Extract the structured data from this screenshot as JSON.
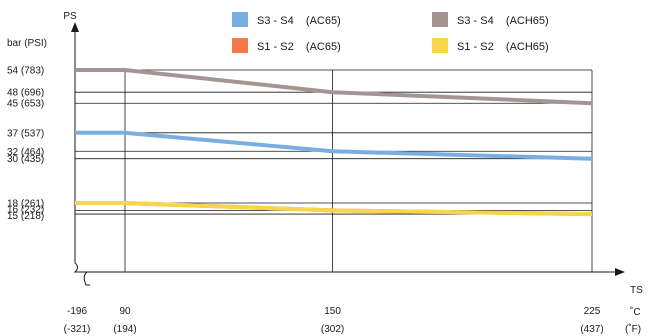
{
  "chart_data": {
    "type": "line",
    "ylabel": "PS",
    "yunit": "bar (PSI)",
    "xlabel": "TS",
    "xunit_c": "˚C",
    "xunit_f": "(˚F)",
    "x_ticks": [
      {
        "c": "-196",
        "f": "(-321)"
      },
      {
        "c": "90",
        "f": "(194)"
      },
      {
        "c": "150",
        "f": "(302)"
      },
      {
        "c": "225",
        "f": "(437)"
      }
    ],
    "y_ticks": [
      {
        "v": 15,
        "label": "15  (218)"
      },
      {
        "v": 16,
        "label": "16  (232)"
      },
      {
        "v": 18,
        "label": "18  (261)"
      },
      {
        "v": 30,
        "label": "30  (435)"
      },
      {
        "v": 32,
        "label": "32  (464)"
      },
      {
        "v": 37,
        "label": "37  (537)"
      },
      {
        "v": 45,
        "label": "45  (653)"
      },
      {
        "v": 48,
        "label": "48  (696)"
      },
      {
        "v": 54,
        "label": "54  (783)"
      }
    ],
    "x_axis_break": true,
    "grid": true,
    "legend_position": "top",
    "series": [
      {
        "name": "S3 - S4    (AC65)",
        "color": "#7aaee0",
        "x": [
          -196,
          90,
          150,
          225
        ],
        "y": [
          37,
          37,
          32,
          30
        ]
      },
      {
        "name": "S3 - S4    (ACH65)",
        "color": "#a39690",
        "x": [
          -196,
          90,
          150,
          225
        ],
        "y": [
          54,
          54,
          48,
          45
        ]
      },
      {
        "name": "S1 - S2    (AC65)",
        "color": "#f47a45",
        "x": [
          -196,
          90,
          150,
          225
        ],
        "y": [
          18,
          18,
          16,
          15
        ]
      },
      {
        "name": "S1 - S2    (ACH65)",
        "color": "#f7d64b",
        "x": [
          -196,
          90,
          150,
          225
        ],
        "y": [
          18,
          18,
          16,
          15
        ]
      }
    ]
  }
}
